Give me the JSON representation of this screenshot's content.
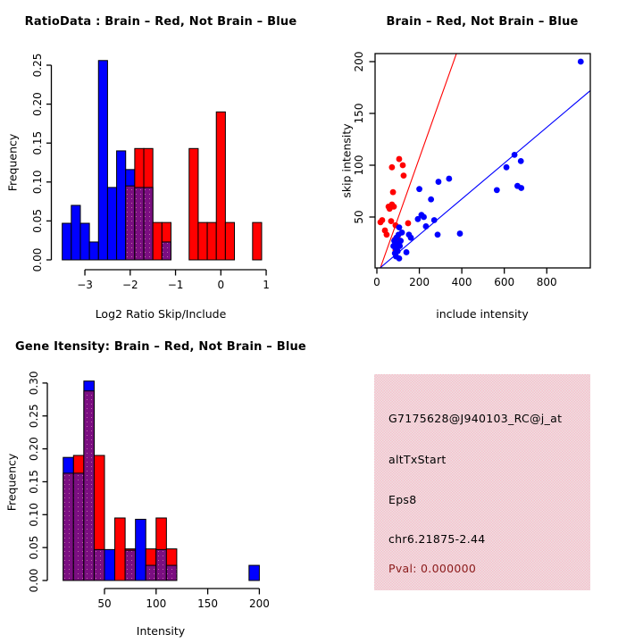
{
  "colors": {
    "red": "#FF0000",
    "blue": "#0000FF",
    "overlap_purple": "#7B0E81",
    "overlap_dot": "#C06BA8",
    "info_box_pink": "#F8BFCA",
    "info_box_pink_alt": "#EBE2E4",
    "pval_dark_red": "#8B1A1A",
    "axis_black": "#000000",
    "background": "#FFFFFF"
  },
  "info_box": {
    "lines": [
      "G7175628@J940103_RC@j_at",
      "altTxStart",
      "Eps8",
      "chr6.21875-2.44"
    ],
    "pval": "Pval: 0.000000"
  },
  "chart_data": [
    {
      "id": "ratio_histogram",
      "type": "bar",
      "subtype": "overlaid-histogram",
      "title": "RatioData : Brain – Red, Not Brain – Blue",
      "xlabel": "Log2 Ratio Skip/Include",
      "ylabel": "Frequency",
      "xlim": [
        -3.6,
        1.1
      ],
      "ylim": [
        0,
        0.26
      ],
      "grid": false,
      "xtick_values": [
        -3,
        -2,
        -1,
        0,
        1
      ],
      "xticks": [
        "−3",
        "−2",
        "−1",
        "0",
        "1"
      ],
      "ytick_values": [
        0,
        0.05,
        0.1,
        0.15,
        0.2,
        0.25
      ],
      "yticks": [
        "0.00",
        "0.05",
        "0.10",
        "0.15",
        "0.20",
        "0.25"
      ],
      "bin_width": 0.2,
      "bars": [
        {
          "x": -3.5,
          "blue": 0.047,
          "red": 0,
          "overlap": 0
        },
        {
          "x": -3.3,
          "blue": 0.07,
          "red": 0,
          "overlap": 0
        },
        {
          "x": -3.1,
          "blue": 0.047,
          "red": 0,
          "overlap": 0
        },
        {
          "x": -2.9,
          "blue": 0.023,
          "red": 0,
          "overlap": 0
        },
        {
          "x": -2.7,
          "blue": 0.256,
          "red": 0,
          "overlap": 0
        },
        {
          "x": -2.5,
          "blue": 0.093,
          "red": 0,
          "overlap": 0
        },
        {
          "x": -2.3,
          "blue": 0.14,
          "red": 0,
          "overlap": 0
        },
        {
          "x": -2.1,
          "blue": 0.116,
          "red": 0.095,
          "overlap": 0.095
        },
        {
          "x": -1.9,
          "blue": 0.093,
          "red": 0.143,
          "overlap": 0.093
        },
        {
          "x": -1.7,
          "blue": 0.093,
          "red": 0.143,
          "overlap": 0.093
        },
        {
          "x": -1.5,
          "blue": 0,
          "red": 0.048,
          "overlap": 0
        },
        {
          "x": -1.3,
          "blue": 0.023,
          "red": 0.048,
          "overlap": 0.023
        },
        {
          "x": -0.7,
          "blue": 0,
          "red": 0.143,
          "overlap": 0
        },
        {
          "x": -0.5,
          "blue": 0,
          "red": 0.048,
          "overlap": 0
        },
        {
          "x": -0.3,
          "blue": 0,
          "red": 0.048,
          "overlap": 0
        },
        {
          "x": -0.1,
          "blue": 0,
          "red": 0.19,
          "overlap": 0
        },
        {
          "x": 0.1,
          "blue": 0,
          "red": 0.048,
          "overlap": 0
        },
        {
          "x": 0.7,
          "blue": 0,
          "red": 0.048,
          "overlap": 0
        }
      ]
    },
    {
      "id": "intensity_scatter",
      "type": "scatter",
      "title": "Brain – Red, Not Brain – Blue",
      "xlabel": "include intensity",
      "ylabel": "skip intensity",
      "xlim": [
        -30,
        1010
      ],
      "ylim": [
        0,
        208
      ],
      "grid": false,
      "xtick_values": [
        0,
        200,
        400,
        600,
        800
      ],
      "xticks": [
        "0",
        "200",
        "400",
        "600",
        "800"
      ],
      "ytick_values": [
        50,
        100,
        150,
        200
      ],
      "yticks": [
        "50",
        "100",
        "150",
        "200"
      ],
      "series": [
        {
          "name": "Brain",
          "color": "red",
          "points": [
            [
              17,
              45
            ],
            [
              25,
              47
            ],
            [
              38,
              37
            ],
            [
              46,
              33
            ],
            [
              55,
              60
            ],
            [
              60,
              58
            ],
            [
              67,
              46
            ],
            [
              71,
              98
            ],
            [
              71,
              62
            ],
            [
              76,
              74
            ],
            [
              80,
              60
            ],
            [
              84,
              28
            ],
            [
              88,
              42
            ],
            [
              88,
              18
            ],
            [
              90,
              25
            ],
            [
              97,
              30
            ],
            [
              105,
              106
            ],
            [
              122,
              100
            ],
            [
              126,
              90
            ],
            [
              147,
              44
            ]
          ]
        },
        {
          "name": "Not Brain",
          "color": "blue",
          "points": [
            [
              78,
              22
            ],
            [
              82,
              27
            ],
            [
              85,
              15
            ],
            [
              88,
              20
            ],
            [
              90,
              12
            ],
            [
              92,
              30
            ],
            [
              95,
              24
            ],
            [
              98,
              17
            ],
            [
              102,
              33
            ],
            [
              105,
              10
            ],
            [
              105,
              40
            ],
            [
              108,
              22
            ],
            [
              112,
              27
            ],
            [
              118,
              35
            ],
            [
              139,
              16
            ],
            [
              151,
              33
            ],
            [
              160,
              30
            ],
            [
              193,
              48
            ],
            [
              200,
              77
            ],
            [
              210,
              52
            ],
            [
              221,
              50
            ],
            [
              231,
              41
            ],
            [
              255,
              67
            ],
            [
              270,
              47
            ],
            [
              286,
              33
            ],
            [
              290,
              84
            ],
            [
              340,
              87
            ],
            [
              391,
              34
            ],
            [
              565,
              76
            ],
            [
              610,
              98
            ],
            [
              648,
              110
            ],
            [
              662,
              80
            ],
            [
              678,
              104
            ],
            [
              680,
              78
            ],
            [
              960,
              200
            ]
          ]
        }
      ],
      "lines": [
        {
          "name": "brain-fit-line",
          "color": "red",
          "x1": 15,
          "y1": 0,
          "x2": 375,
          "y2": 208
        },
        {
          "name": "not-brain-fit-line",
          "color": "blue",
          "x1": 10,
          "y1": 0,
          "x2": 1005,
          "y2": 172
        }
      ]
    },
    {
      "id": "gene_histogram",
      "type": "bar",
      "subtype": "overlaid-histogram",
      "title": "Gene Itensity: Brain – Red, Not Brain – Blue",
      "xlabel": "Intensity",
      "ylabel": "Frequency",
      "xlim": [
        5,
        205
      ],
      "ylim": [
        0,
        0.31
      ],
      "grid": false,
      "xtick_values": [
        50,
        100,
        150,
        200
      ],
      "xticks": [
        "50",
        "100",
        "150",
        "200"
      ],
      "ytick_values": [
        0,
        0.05,
        0.1,
        0.15,
        0.2,
        0.25,
        0.3
      ],
      "yticks": [
        "0.00",
        "0.05",
        "0.10",
        "0.15",
        "0.20",
        "0.25",
        "0.30"
      ],
      "bin_width": 10,
      "bars": [
        {
          "x": 10,
          "blue": 0.187,
          "red": 0.163,
          "overlap": 0.163
        },
        {
          "x": 20,
          "blue": 0.163,
          "red": 0.19,
          "overlap": 0.163
        },
        {
          "x": 30,
          "blue": 0.303,
          "red": 0.288,
          "overlap": 0.288
        },
        {
          "x": 40,
          "blue": 0.047,
          "red": 0.19,
          "overlap": 0.047
        },
        {
          "x": 50,
          "blue": 0.047,
          "red": 0,
          "overlap": 0
        },
        {
          "x": 60,
          "blue": 0,
          "red": 0.095,
          "overlap": 0
        },
        {
          "x": 70,
          "blue": 0.046,
          "red": 0.048,
          "overlap": 0.046
        },
        {
          "x": 80,
          "blue": 0.093,
          "red": 0,
          "overlap": 0
        },
        {
          "x": 90,
          "blue": 0.023,
          "red": 0.048,
          "overlap": 0.023
        },
        {
          "x": 100,
          "blue": 0.047,
          "red": 0.095,
          "overlap": 0.047
        },
        {
          "x": 110,
          "blue": 0.023,
          "red": 0.048,
          "overlap": 0.023
        },
        {
          "x": 190,
          "blue": 0.023,
          "red": 0,
          "overlap": 0
        }
      ]
    }
  ]
}
